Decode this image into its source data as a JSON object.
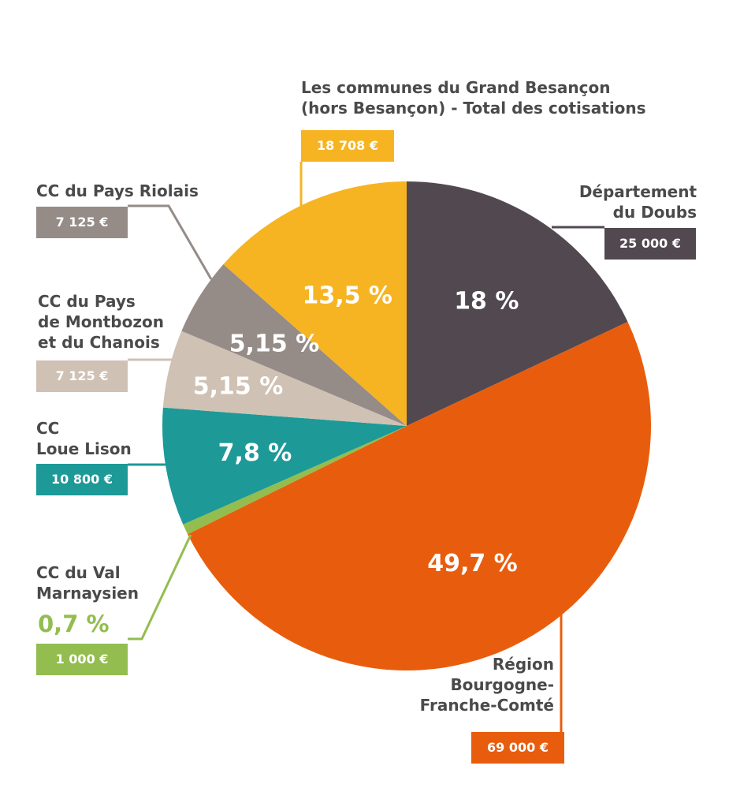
{
  "chart_data": {
    "type": "pie",
    "title": "",
    "slices": [
      {
        "name": "Département\ndu Doubs",
        "pct": 18,
        "pct_label": "18 %",
        "amount": "25 000 €",
        "color": "#524950"
      },
      {
        "name": "Région\nBourgogne-\nFranche-Comté",
        "pct": 49.7,
        "pct_label": "49,7 %",
        "amount": "69 000 €",
        "color": "#e85d0d"
      },
      {
        "name": "CC du Val\nMarnaysien",
        "pct": 0.7,
        "pct_label": "0,7 %",
        "amount": "1 000 €",
        "color": "#93bd4f"
      },
      {
        "name": "CC\nLoue Lison",
        "pct": 7.8,
        "pct_label": "7,8 %",
        "amount": "10 800 €",
        "color": "#1d9998"
      },
      {
        "name": "CC du Pays\nde Montbozon\net du Chanois",
        "pct": 5.15,
        "pct_label": "5,15 %",
        "amount": "7 125 €",
        "color": "#cfc1b4"
      },
      {
        "name": "CC du Pays Riolais",
        "pct": 5.15,
        "pct_label": "5,15 %",
        "amount": "7 125 €",
        "color": "#958c88"
      },
      {
        "name": "Les communes du Grand Besançon\n(hors Besançon) - Total des cotisations",
        "pct": 13.5,
        "pct_label": "13,5 %",
        "amount": "18 708 €",
        "color": "#f7b422"
      }
    ]
  }
}
